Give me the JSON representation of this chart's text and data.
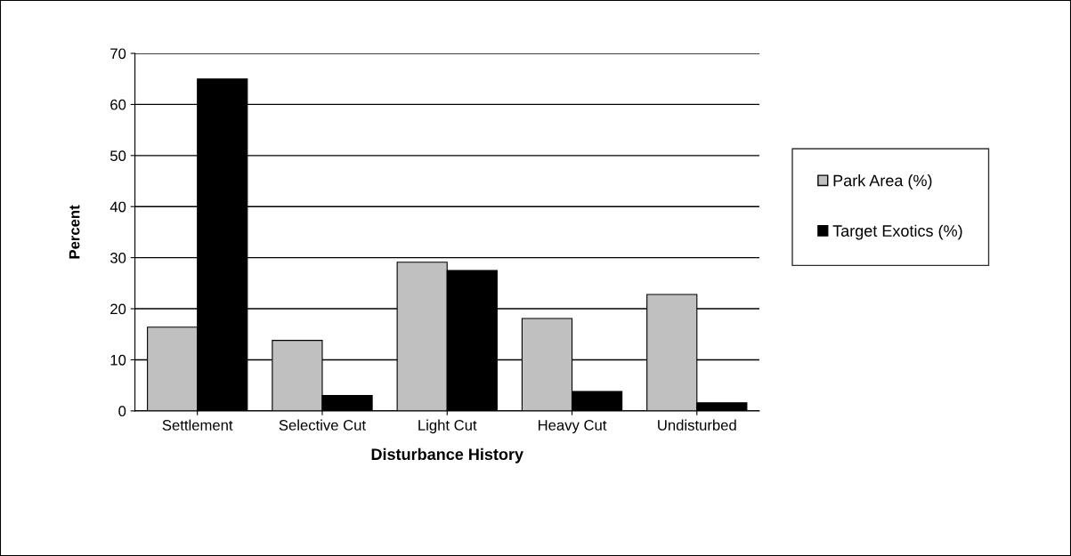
{
  "chart_data": {
    "type": "bar",
    "xlabel": "Disturbance History",
    "ylabel": "Percent",
    "categories": [
      "Settlement",
      "Selective Cut",
      "Light Cut",
      "Heavy Cut",
      "Undisturbed"
    ],
    "series": [
      {
        "name": "Park Area (%)",
        "color": "#c0c0c0",
        "values": [
          16.4,
          13.8,
          29.1,
          18.1,
          22.8
        ]
      },
      {
        "name": "Target Exotics (%)",
        "color": "#000000",
        "values": [
          65.0,
          3.0,
          27.5,
          3.8,
          1.6
        ]
      }
    ],
    "ylim": [
      0,
      70
    ],
    "yticks": [
      0,
      10,
      20,
      30,
      40,
      50,
      60,
      70
    ],
    "grid": "y",
    "legend": "right"
  }
}
